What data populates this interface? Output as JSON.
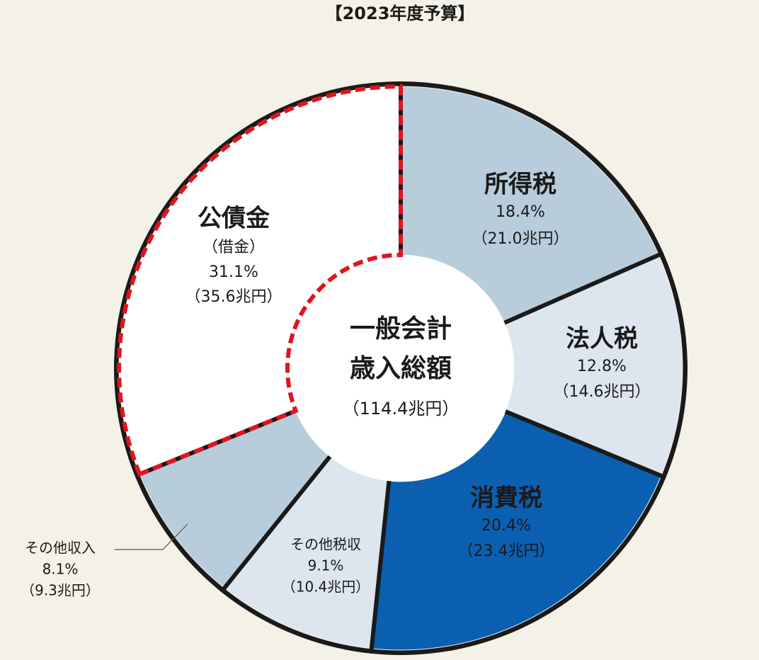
{
  "chart_data": {
    "type": "pie",
    "title": "【2023年度予算】",
    "categories": [
      "所得税",
      "法人税",
      "消費税",
      "その他税収",
      "その他収入",
      "公債金"
    ],
    "values": [
      18.4,
      12.8,
      20.4,
      9.1,
      8.1,
      31.1
    ],
    "value_labels": [
      "18.4%",
      "12.8%",
      "20.4%",
      "9.1%",
      "8.1%",
      "31.1%"
    ],
    "amounts": [
      21.0,
      14.6,
      23.4,
      10.4,
      9.3,
      35.6
    ],
    "amount_labels": [
      "（21.0兆円）",
      "（14.6兆円）",
      "（23.4兆円）",
      "（10.4兆円）",
      "（9.3兆円）",
      "（35.6兆円）"
    ],
    "colors": [
      "#b8cddb",
      "#dde6ee",
      "#0a5fb0",
      "#dde6ee",
      "#b8cddb",
      "#ffffff"
    ],
    "label_colors": [
      "#1a1a1a",
      "#1a1a1a",
      "#ffffff",
      "#1a1a1a",
      "#1a1a1a",
      "#e0141e"
    ],
    "debt_note": "（借金）",
    "center_label": [
      "一般会計",
      "歳入総額"
    ],
    "total": 114.4,
    "total_label": "（114.4兆円）"
  }
}
